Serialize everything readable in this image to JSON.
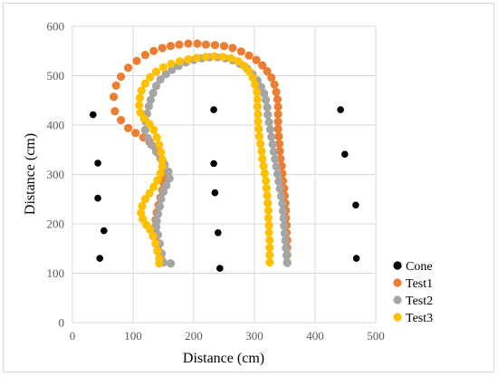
{
  "chart_data": {
    "type": "scatter",
    "xlabel": "Distance (cm)",
    "ylabel": "Distance (cm)",
    "xlim": [
      0,
      500
    ],
    "ylim": [
      0,
      600
    ],
    "x_ticks": [
      0,
      100,
      200,
      300,
      400,
      500
    ],
    "y_ticks": [
      0,
      100,
      200,
      300,
      400,
      500,
      600
    ],
    "grid": true,
    "legend_position": "bottom-right",
    "series": [
      {
        "name": "Cone",
        "color": "#000000",
        "points": [
          [
            34,
            421
          ],
          [
            42,
            323
          ],
          [
            42,
            252
          ],
          [
            52,
            186
          ],
          [
            45,
            130
          ],
          [
            233,
            431
          ],
          [
            233,
            322
          ],
          [
            235,
            263
          ],
          [
            240,
            182
          ],
          [
            243,
            110
          ],
          [
            442,
            431
          ],
          [
            449,
            341
          ],
          [
            467,
            238
          ],
          [
            468,
            130
          ]
        ]
      },
      {
        "name": "Test1",
        "color": "#ED7D31",
        "points": [
          [
            148,
            122
          ],
          [
            146,
            130
          ],
          [
            142,
            145
          ],
          [
            139,
            162
          ],
          [
            137,
            178
          ],
          [
            136,
            193
          ],
          [
            137,
            208
          ],
          [
            139,
            223
          ],
          [
            142,
            238
          ],
          [
            145,
            253
          ],
          [
            148,
            268
          ],
          [
            150,
            283
          ],
          [
            151,
            298
          ],
          [
            151,
            313
          ],
          [
            148,
            328
          ],
          [
            142,
            343
          ],
          [
            136,
            356
          ],
          [
            127,
            366
          ],
          [
            117,
            375
          ],
          [
            104,
            384
          ],
          [
            92,
            394
          ],
          [
            80,
            410
          ],
          [
            70,
            428
          ],
          [
            68,
            457
          ],
          [
            72,
            480
          ],
          [
            80,
            498
          ],
          [
            92,
            516
          ],
          [
            106,
            530
          ],
          [
            120,
            542
          ],
          [
            134,
            550
          ],
          [
            148,
            556
          ],
          [
            162,
            560
          ],
          [
            176,
            563
          ],
          [
            191,
            565
          ],
          [
            206,
            565
          ],
          [
            220,
            563
          ],
          [
            235,
            562
          ],
          [
            250,
            560
          ],
          [
            264,
            556
          ],
          [
            278,
            549
          ],
          [
            291,
            541
          ],
          [
            303,
            532
          ],
          [
            313,
            521
          ],
          [
            321,
            509
          ],
          [
            328,
            496
          ],
          [
            333,
            482
          ],
          [
            336,
            467
          ],
          [
            338,
            452
          ],
          [
            339,
            437
          ],
          [
            339,
            422
          ],
          [
            339,
            407
          ],
          [
            339,
            392
          ],
          [
            340,
            377
          ],
          [
            341,
            362
          ],
          [
            342,
            347
          ],
          [
            343,
            332
          ],
          [
            345,
            317
          ],
          [
            346,
            302
          ],
          [
            347,
            287
          ],
          [
            349,
            272
          ],
          [
            350,
            257
          ],
          [
            351,
            242
          ],
          [
            352,
            227
          ],
          [
            352,
            212
          ],
          [
            353,
            197
          ],
          [
            353,
            182
          ],
          [
            354,
            167
          ],
          [
            354,
            152
          ],
          [
            354,
            137
          ],
          [
            354,
            122
          ]
        ]
      },
      {
        "name": "Test2",
        "color": "#A5A5A5",
        "points": [
          [
            162,
            120
          ],
          [
            150,
            122
          ],
          [
            147,
            140
          ],
          [
            144,
            160
          ],
          [
            141,
            178
          ],
          [
            138,
            193
          ],
          [
            139,
            206
          ],
          [
            141,
            220
          ],
          [
            144,
            235
          ],
          [
            146,
            250
          ],
          [
            150,
            265
          ],
          [
            155,
            278
          ],
          [
            160,
            292
          ],
          [
            158,
            306
          ],
          [
            152,
            320
          ],
          [
            145,
            333
          ],
          [
            138,
            346
          ],
          [
            130,
            360
          ],
          [
            124,
            374
          ],
          [
            120,
            390
          ],
          [
            121,
            407
          ],
          [
            123,
            423
          ],
          [
            126,
            438
          ],
          [
            129,
            451
          ],
          [
            133,
            465
          ],
          [
            138,
            479
          ],
          [
            145,
            492
          ],
          [
            154,
            503
          ],
          [
            164,
            512
          ],
          [
            175,
            520
          ],
          [
            187,
            527
          ],
          [
            200,
            532
          ],
          [
            213,
            535
          ],
          [
            226,
            537
          ],
          [
            239,
            537
          ],
          [
            252,
            535
          ],
          [
            264,
            531
          ],
          [
            276,
            524
          ],
          [
            288,
            514
          ],
          [
            297,
            503
          ],
          [
            305,
            490
          ],
          [
            311,
            477
          ],
          [
            316,
            464
          ],
          [
            319,
            451
          ],
          [
            321,
            436
          ],
          [
            322,
            421
          ],
          [
            324,
            406
          ],
          [
            326,
            391
          ],
          [
            328,
            376
          ],
          [
            330,
            361
          ],
          [
            332,
            346
          ],
          [
            334,
            331
          ],
          [
            336,
            316
          ],
          [
            338,
            301
          ],
          [
            340,
            286
          ],
          [
            342,
            271
          ],
          [
            344,
            256
          ],
          [
            346,
            241
          ],
          [
            347,
            226
          ],
          [
            348,
            211
          ],
          [
            349,
            196
          ],
          [
            350,
            181
          ],
          [
            351,
            166
          ],
          [
            352,
            151
          ],
          [
            353,
            136
          ],
          [
            354,
            121
          ]
        ]
      },
      {
        "name": "Test3",
        "color": "#FFC000",
        "points": [
          [
            143,
            120
          ],
          [
            143,
            130
          ],
          [
            140,
            145
          ],
          [
            137,
            160
          ],
          [
            133,
            175
          ],
          [
            128,
            188
          ],
          [
            122,
            198
          ],
          [
            116,
            210
          ],
          [
            113,
            222
          ],
          [
            115,
            236
          ],
          [
            120,
            250
          ],
          [
            127,
            262
          ],
          [
            134,
            275
          ],
          [
            140,
            288
          ],
          [
            145,
            302
          ],
          [
            148,
            316
          ],
          [
            148,
            330
          ],
          [
            146,
            345
          ],
          [
            143,
            360
          ],
          [
            139,
            375
          ],
          [
            134,
            390
          ],
          [
            127,
            402
          ],
          [
            118,
            413
          ],
          [
            112,
            425
          ],
          [
            110,
            440
          ],
          [
            111,
            455
          ],
          [
            114,
            470
          ],
          [
            120,
            484
          ],
          [
            128,
            497
          ],
          [
            138,
            508
          ],
          [
            150,
            517
          ],
          [
            163,
            524
          ],
          [
            177,
            529
          ],
          [
            191,
            533
          ],
          [
            205,
            536
          ],
          [
            220,
            538
          ],
          [
            234,
            539
          ],
          [
            248,
            538
          ],
          [
            261,
            535
          ],
          [
            273,
            529
          ],
          [
            283,
            520
          ],
          [
            291,
            509
          ],
          [
            297,
            496
          ],
          [
            301,
            482
          ],
          [
            304,
            467
          ],
          [
            305,
            452
          ],
          [
            305,
            437
          ],
          [
            306,
            422
          ],
          [
            306,
            407
          ],
          [
            307,
            392
          ],
          [
            308,
            377
          ],
          [
            310,
            362
          ],
          [
            312,
            347
          ],
          [
            313,
            332
          ],
          [
            315,
            317
          ],
          [
            317,
            302
          ],
          [
            319,
            287
          ],
          [
            320,
            272
          ],
          [
            321,
            257
          ],
          [
            322,
            242
          ],
          [
            323,
            227
          ],
          [
            323,
            212
          ],
          [
            324,
            197
          ],
          [
            324,
            182
          ],
          [
            325,
            167
          ],
          [
            325,
            152
          ],
          [
            325,
            137
          ],
          [
            325,
            122
          ]
        ]
      }
    ]
  }
}
